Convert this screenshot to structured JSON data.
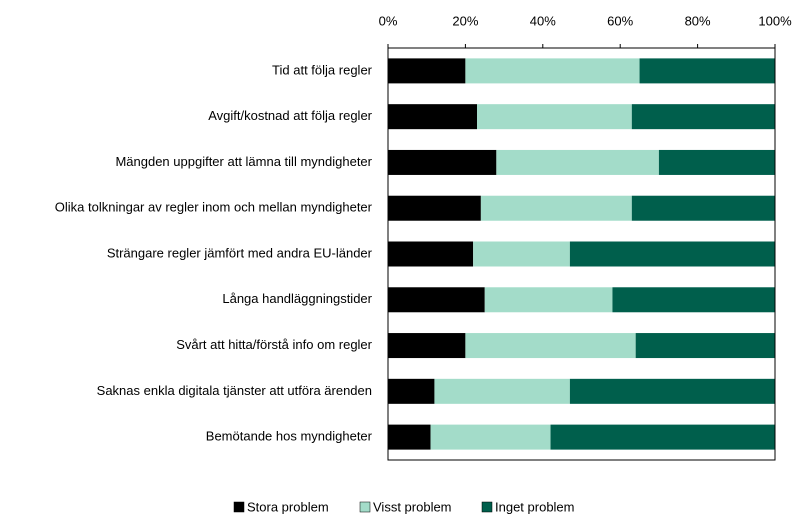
{
  "chart_data": {
    "type": "stacked-bar-horizontal",
    "categories": [
      "Tid att följa regler",
      "Avgift/kostnad att följa regler",
      "Mängden uppgifter att lämna till myndigheter",
      "Olika tolkningar av regler inom och mellan myndigheter",
      "Strängare regler jämfört med andra EU-länder",
      "Långa handläggningstider",
      "Svårt att hitta/förstå info om regler",
      "Saknas enkla digitala tjänster att utföra ärenden",
      "Bemötande hos myndigheter"
    ],
    "series": [
      {
        "name": "Stora problem",
        "color": "#000000",
        "values": [
          20,
          23,
          28,
          24,
          22,
          25,
          20,
          12,
          11
        ]
      },
      {
        "name": "Visst problem",
        "color": "#a3dcc9",
        "values": [
          45,
          40,
          42,
          39,
          25,
          33,
          44,
          35,
          31
        ]
      },
      {
        "name": "Inget problem",
        "color": "#005f4c",
        "values": [
          35,
          37,
          30,
          37,
          53,
          42,
          36,
          53,
          58
        ]
      }
    ],
    "xlim": [
      0,
      100
    ],
    "xticks": [
      {
        "value": 0,
        "label": "0%"
      },
      {
        "value": 20,
        "label": "20%"
      },
      {
        "value": 40,
        "label": "40%"
      },
      {
        "value": 60,
        "label": "60%"
      },
      {
        "value": 80,
        "label": "80%"
      },
      {
        "value": 100,
        "label": "100%"
      }
    ],
    "legend": "bottom"
  }
}
